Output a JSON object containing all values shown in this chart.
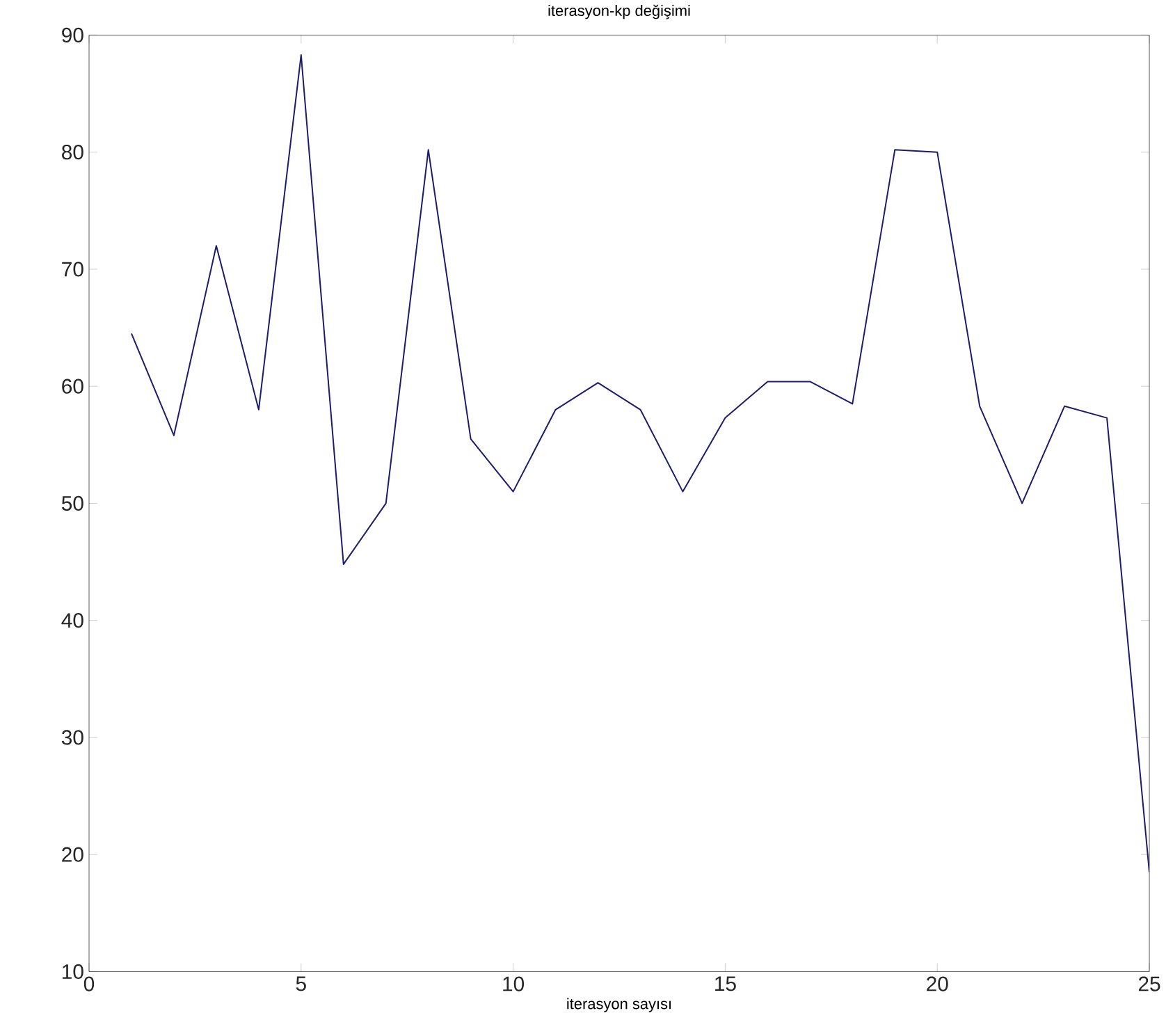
{
  "chart_data": {
    "type": "line",
    "title": "iterasyon-kp değişimi",
    "xlabel": "iterasyon sayısı",
    "x": [
      1,
      2,
      3,
      4,
      5,
      6,
      7,
      8,
      9,
      10,
      11,
      12,
      13,
      14,
      15,
      16,
      17,
      18,
      19,
      20,
      21,
      22,
      23,
      24,
      25
    ],
    "series": [
      {
        "color": "#1c1c6c",
        "values": [
          64.5,
          55.8,
          72,
          58,
          88.3,
          44.8,
          50,
          80.2,
          55.5,
          51,
          58,
          60.3,
          58,
          51,
          57.3,
          60.4,
          60.4,
          58.5,
          80.2,
          80,
          58.3,
          50,
          58.3,
          57.3,
          18.5
        ]
      }
    ],
    "xlim": [
      0,
      25
    ],
    "ylim": [
      10,
      90
    ],
    "xticks": [
      0,
      5,
      10,
      15,
      20,
      25
    ],
    "yticks": [
      10,
      20,
      30,
      40,
      50,
      60,
      70,
      80,
      90
    ],
    "grid": false,
    "legend": false,
    "marker": "none",
    "line_style": "solid"
  }
}
